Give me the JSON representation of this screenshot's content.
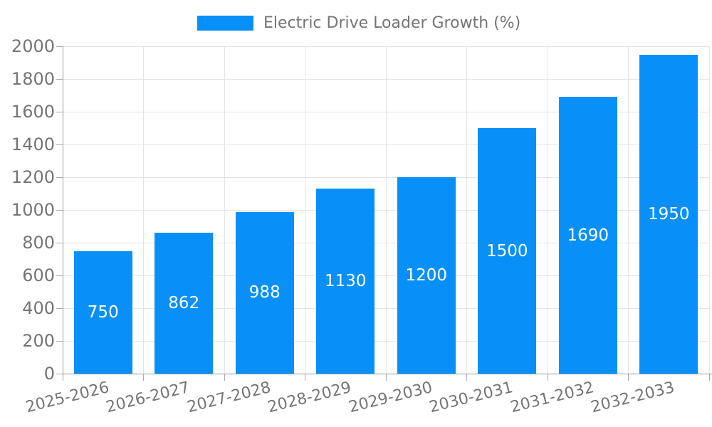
{
  "chart_data": {
    "type": "bar",
    "legend": "Electric Drive Loader Growth (%)",
    "categories": [
      "2025-2026",
      "2026-2027",
      "2027-2028",
      "2028-2029",
      "2029-2030",
      "2030-2031",
      "2031-2032",
      "2032-2033"
    ],
    "values": [
      750,
      862,
      988,
      1130,
      1200,
      1500,
      1690,
      1950
    ],
    "value_labels": [
      "750",
      "862",
      "988",
      "1130",
      "1200",
      "1500",
      "1690",
      "1950"
    ],
    "ylabel": "",
    "xlabel": "",
    "ylim": [
      0,
      2000
    ],
    "yticks": [
      0,
      200,
      400,
      600,
      800,
      1000,
      1200,
      1400,
      1600,
      1800,
      2000
    ],
    "grid": true,
    "legend_position": "top-center",
    "bar_color": "#0890f8",
    "value_label_color": "#ffffff",
    "axis_text_color": "#757575",
    "grid_color": "#e5e5e5",
    "axis_line_color": "#999999"
  }
}
